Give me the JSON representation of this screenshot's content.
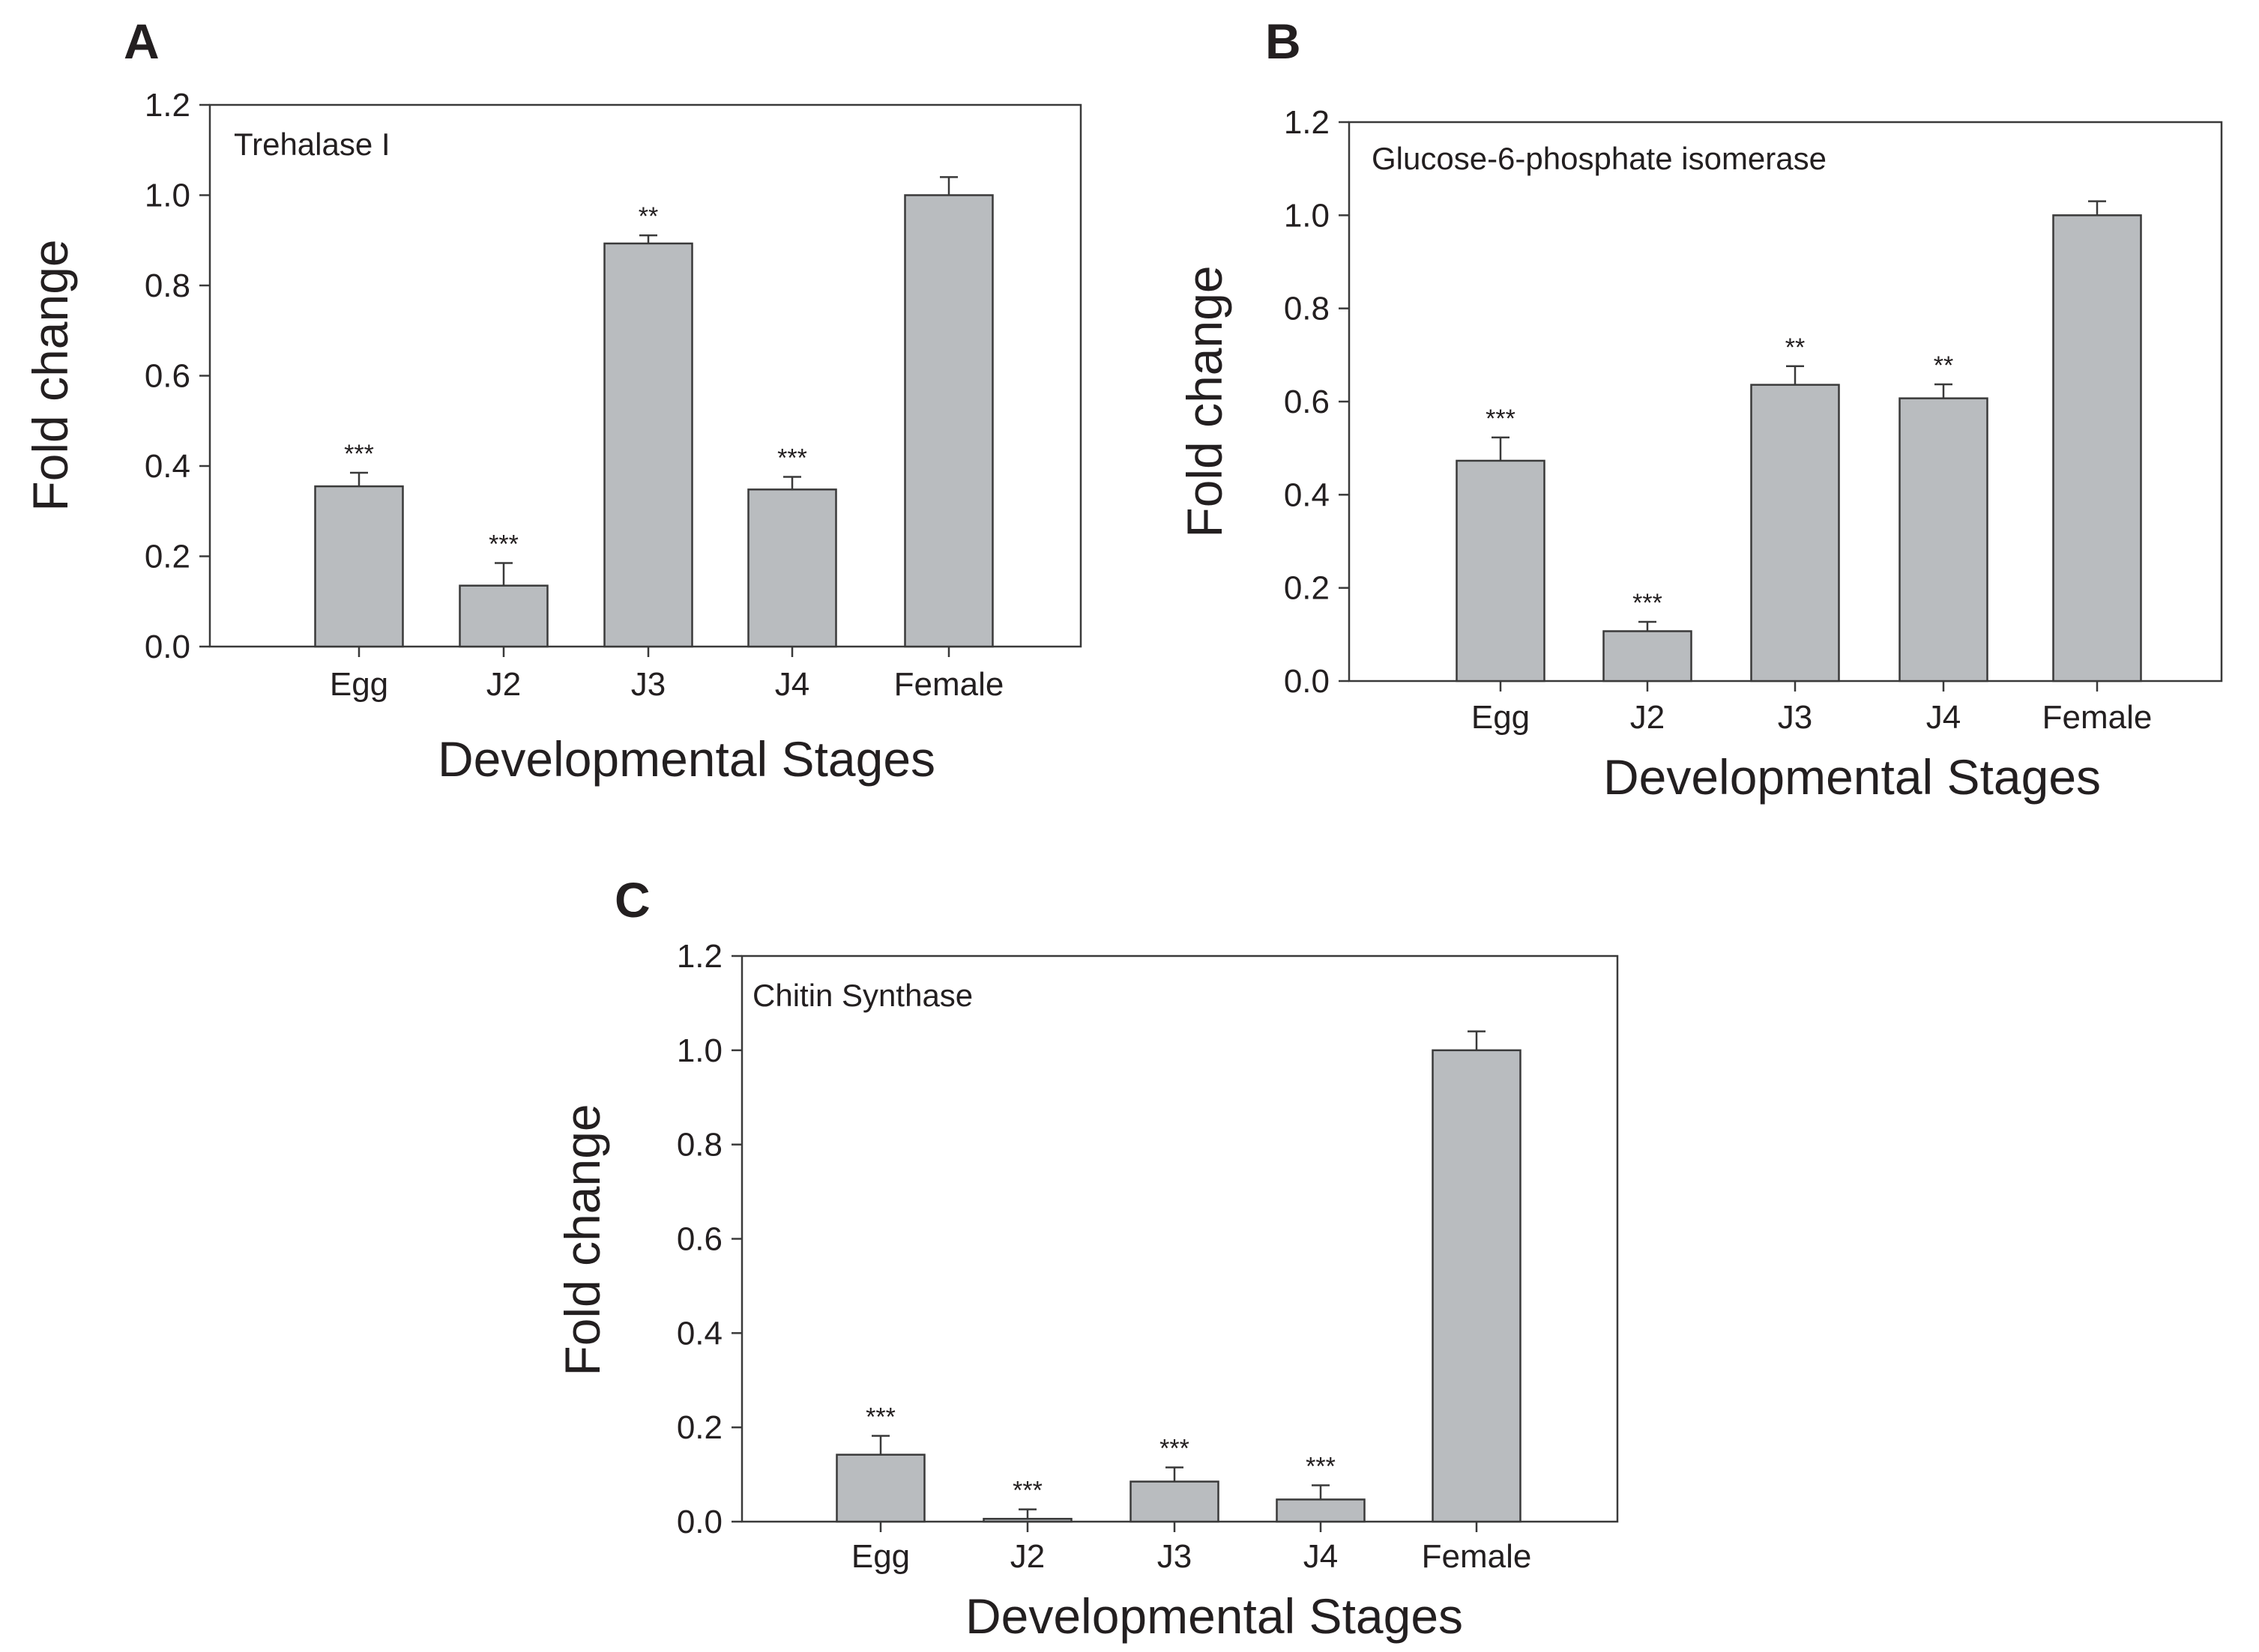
{
  "chart_data": [
    {
      "panel": "A",
      "type": "bar",
      "title": "Trehalase I",
      "xlabel": "Developmental Stages",
      "ylabel": "Fold change",
      "ylim": [
        0,
        1.2
      ],
      "yticks": [
        "0.0",
        "0.2",
        "0.4",
        "0.6",
        "0.8",
        "1.0",
        "1.2"
      ],
      "categories": [
        "Egg",
        "J2",
        "J3",
        "J4",
        "Female"
      ],
      "values": [
        0.355,
        0.135,
        0.893,
        0.348,
        1.0
      ],
      "errors": [
        0.03,
        0.05,
        0.018,
        0.028,
        0.04
      ],
      "significance": [
        "***",
        "***",
        "**",
        "***",
        ""
      ],
      "bar_color": "#b9bcbf",
      "grid": false,
      "legend": "none"
    },
    {
      "panel": "B",
      "type": "bar",
      "title": "Glucose-6-phosphate isomerase",
      "xlabel": "Developmental Stages",
      "ylabel": "Fold change",
      "ylim": [
        0,
        1.2
      ],
      "yticks": [
        "0.0",
        "0.2",
        "0.4",
        "0.6",
        "0.8",
        "1.0",
        "1.2"
      ],
      "categories": [
        "Egg",
        "J2",
        "J3",
        "J4",
        "Female"
      ],
      "values": [
        0.473,
        0.107,
        0.636,
        0.607,
        1.0
      ],
      "errors": [
        0.05,
        0.02,
        0.04,
        0.03,
        0.03
      ],
      "significance": [
        "***",
        "***",
        "**",
        "**",
        ""
      ],
      "bar_color": "#b9bcbf",
      "grid": false,
      "legend": "none"
    },
    {
      "panel": "C",
      "type": "bar",
      "title": "Chitin Synthase",
      "xlabel": "Developmental Stages",
      "ylabel": "Fold change",
      "ylim": [
        0,
        1.2
      ],
      "yticks": [
        "0.0",
        "0.2",
        "0.4",
        "0.6",
        "0.8",
        "1.0",
        "1.2"
      ],
      "categories": [
        "Egg",
        "J2",
        "J3",
        "J4",
        "Female"
      ],
      "values": [
        0.142,
        0.006,
        0.085,
        0.047,
        1.0
      ],
      "errors": [
        0.04,
        0.02,
        0.03,
        0.03,
        0.04
      ],
      "significance": [
        "***",
        "***",
        "***",
        "***",
        ""
      ],
      "bar_color": "#b9bcbf",
      "grid": false,
      "legend": "none"
    }
  ]
}
